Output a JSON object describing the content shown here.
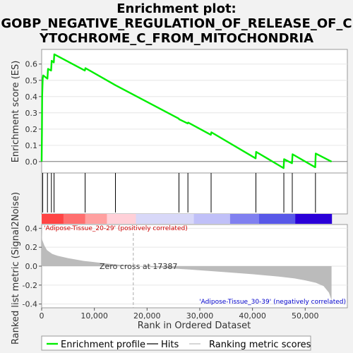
{
  "title_lines": [
    "Enrichment plot:",
    "GOBP_NEGATIVE_REGULATION_OF_RELEASE_OF_C",
    "YTOCHROME_C_FROM_MITOCHONDRIA"
  ],
  "chart_data": {
    "type": "line",
    "es_panel": {
      "ylabel": "Enrichment score (ES)",
      "ylim": [
        -0.07,
        0.69
      ],
      "yticks": [
        0.0,
        0.1,
        0.2,
        0.3,
        0.4,
        0.5,
        0.6
      ],
      "ytick_labels": [
        "0.0",
        "0.1",
        "0.2",
        "0.3",
        "0.4",
        "0.5",
        "0.6"
      ],
      "series": [
        {
          "name": "Enrichment profile",
          "color": "#00ee00",
          "x": [
            0,
            50,
            100,
            200,
            300,
            1100,
            1200,
            1800,
            1900,
            2300,
            2400,
            8200,
            8300,
            14000,
            26000,
            26100,
            27700,
            27800,
            32100,
            32200,
            40600,
            40700,
            45900,
            46000,
            47500,
            47600,
            51900,
            52000,
            55000
          ],
          "y": [
            0.0,
            0.18,
            0.4,
            0.51,
            0.53,
            0.51,
            0.57,
            0.56,
            0.62,
            0.61,
            0.66,
            0.56,
            0.575,
            0.47,
            0.265,
            0.26,
            0.235,
            0.24,
            0.165,
            0.18,
            0.02,
            0.06,
            -0.04,
            0.015,
            -0.01,
            0.045,
            -0.035,
            0.05,
            0.0
          ]
        }
      ]
    },
    "hits_panel": {
      "series_name": "Hits",
      "hit_positions": [
        200,
        1100,
        1850,
        2350,
        8250,
        14000,
        26050,
        27750,
        32150,
        40650,
        45950,
        47550,
        51950
      ]
    },
    "rank_panel": {
      "xlabel": "Rank in Ordered Dataset",
      "ylabel": "Ranked list metric (Signal2Noise)",
      "xlim": [
        0,
        58000
      ],
      "ylim": [
        -0.44,
        0.44
      ],
      "xticks": [
        0,
        10000,
        20000,
        30000,
        40000,
        50000
      ],
      "xtick_labels": [
        "0",
        "10,000",
        "20,000",
        "30,000",
        "40,000",
        "50,000"
      ],
      "yticks": [
        -0.4,
        -0.2,
        0.0,
        0.2,
        0.4
      ],
      "ytick_labels": [
        "-0.4",
        "-0.2",
        "0.0",
        "0.2",
        "0.4"
      ],
      "series": [
        {
          "name": "Ranking metric scores",
          "color": "#bbbbbb",
          "x": [
            0,
            100,
            500,
            1000,
            2000,
            3000,
            5000,
            8000,
            12000,
            17387,
            22000,
            28000,
            34000,
            40000,
            45000,
            48000,
            50000,
            52000,
            53500,
            54500,
            55000
          ],
          "y": [
            0.36,
            0.28,
            0.22,
            0.17,
            0.13,
            0.11,
            0.085,
            0.055,
            0.03,
            0.0,
            -0.015,
            -0.035,
            -0.06,
            -0.085,
            -0.11,
            -0.13,
            -0.15,
            -0.175,
            -0.21,
            -0.28,
            -0.36
          ]
        }
      ],
      "zero_cross_rank": 17387,
      "zero_cross_label": "Zero cross at 17387",
      "pos_label": "'Adipose-Tissue_20-29' (positively correlated)",
      "neg_label": "'Adipose-Tissue_30-39' (negatively correlated)",
      "pos_label_color": "#cc0000",
      "neg_label_color": "#0000cc"
    },
    "n_ranks": 55000,
    "legend": [
      {
        "label": "Enrichment profile",
        "color": "#00ee00"
      },
      {
        "label": "Hits",
        "color": "#000000"
      },
      {
        "label": "Ranking metric scores",
        "color": "#bbbbbb"
      }
    ],
    "colors": {
      "es_line": "#00ee00",
      "hits": "#000000",
      "metric_fill": "#bbbbbb",
      "heat_pos": "#ff0000",
      "heat_neg": "#0000ff"
    }
  }
}
